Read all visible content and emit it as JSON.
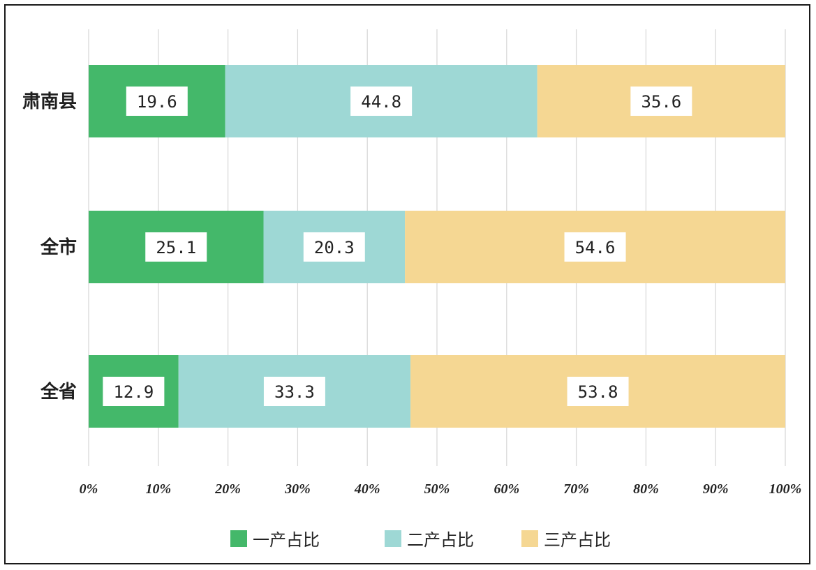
{
  "chart_data": {
    "type": "bar",
    "orientation": "horizontal",
    "stacked": true,
    "categories": [
      "肃南县",
      "全市",
      "全省"
    ],
    "series": [
      {
        "name": "一产占比",
        "color": "#44b86a",
        "values": [
          19.6,
          25.1,
          12.9
        ]
      },
      {
        "name": "二产占比",
        "color": "#9ed8d5",
        "values": [
          44.8,
          20.3,
          33.3
        ]
      },
      {
        "name": "三产占比",
        "color": "#f5d793",
        "values": [
          35.6,
          54.6,
          53.8
        ]
      }
    ],
    "xlim": [
      0,
      100
    ],
    "x_ticks": [
      "0%",
      "10%",
      "20%",
      "30%",
      "40%",
      "50%",
      "60%",
      "70%",
      "80%",
      "90%",
      "100%"
    ],
    "grid": true,
    "legend_position": "bottom",
    "title": "",
    "xlabel": "",
    "ylabel": ""
  }
}
